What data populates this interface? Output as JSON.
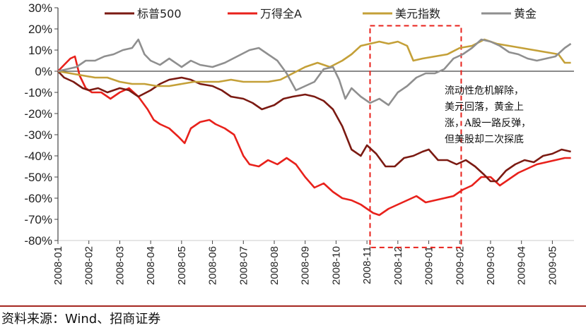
{
  "chart_data": {
    "type": "line",
    "title": "",
    "xlabel": "",
    "ylabel": "",
    "x_ticks": [
      "2008-01",
      "2008-02",
      "2008-03",
      "2008-04",
      "2008-05",
      "2008-06",
      "2008-07",
      "2008-08",
      "2008-09",
      "2008-10",
      "2008-11",
      "2008-12",
      "2009-01",
      "2009-02",
      "2009-03",
      "2009-04",
      "2009-05"
    ],
    "y_ticks": [
      "30%",
      "20%",
      "10%",
      "0%",
      "-10%",
      "-20%",
      "-30%",
      "-40%",
      "-50%",
      "-60%",
      "-70%",
      "-80%"
    ],
    "ylim": [
      -80,
      30
    ],
    "grid": false,
    "legend_position": "top",
    "x_unit": "months since 2008-01",
    "series": [
      {
        "name": "标普500",
        "color": "#7b1a12",
        "points": [
          [
            0,
            0
          ],
          [
            0.2,
            -3
          ],
          [
            0.5,
            -5
          ],
          [
            0.8,
            -8
          ],
          [
            1.0,
            -9
          ],
          [
            1.3,
            -8
          ],
          [
            1.6,
            -10
          ],
          [
            2.0,
            -8
          ],
          [
            2.3,
            -9
          ],
          [
            2.6,
            -12
          ],
          [
            3.0,
            -9
          ],
          [
            3.3,
            -6
          ],
          [
            3.6,
            -4
          ],
          [
            4.0,
            -3
          ],
          [
            4.3,
            -4
          ],
          [
            4.6,
            -6
          ],
          [
            5.0,
            -7
          ],
          [
            5.3,
            -9
          ],
          [
            5.6,
            -12
          ],
          [
            6.0,
            -13
          ],
          [
            6.3,
            -15
          ],
          [
            6.6,
            -18
          ],
          [
            7.0,
            -16
          ],
          [
            7.3,
            -13
          ],
          [
            7.6,
            -12
          ],
          [
            8.0,
            -11
          ],
          [
            8.3,
            -12
          ],
          [
            8.6,
            -14
          ],
          [
            8.9,
            -18
          ],
          [
            9.2,
            -26
          ],
          [
            9.5,
            -37
          ],
          [
            9.8,
            -40
          ],
          [
            10.0,
            -35
          ],
          [
            10.3,
            -39
          ],
          [
            10.6,
            -45
          ],
          [
            10.9,
            -45
          ],
          [
            11.2,
            -41
          ],
          [
            11.5,
            -40
          ],
          [
            11.8,
            -38
          ],
          [
            12.0,
            -37
          ],
          [
            12.3,
            -42
          ],
          [
            12.6,
            -42
          ],
          [
            12.9,
            -44
          ],
          [
            13.2,
            -42
          ],
          [
            13.5,
            -45
          ],
          [
            13.8,
            -49
          ],
          [
            14.0,
            -52
          ],
          [
            14.2,
            -52
          ],
          [
            14.5,
            -47
          ],
          [
            14.8,
            -44
          ],
          [
            15.1,
            -42
          ],
          [
            15.4,
            -43
          ],
          [
            15.7,
            -40
          ],
          [
            16.0,
            -39
          ],
          [
            16.3,
            -37
          ],
          [
            16.6,
            -38
          ]
        ]
      },
      {
        "name": "万得全A",
        "color": "#e8211b",
        "points": [
          [
            0,
            0
          ],
          [
            0.2,
            3
          ],
          [
            0.4,
            6
          ],
          [
            0.55,
            7
          ],
          [
            0.7,
            -2
          ],
          [
            0.9,
            -8
          ],
          [
            1.1,
            -10
          ],
          [
            1.4,
            -10
          ],
          [
            1.7,
            -13
          ],
          [
            2.0,
            -10
          ],
          [
            2.3,
            -8
          ],
          [
            2.6,
            -12
          ],
          [
            2.9,
            -18
          ],
          [
            3.1,
            -23
          ],
          [
            3.3,
            -25
          ],
          [
            3.6,
            -27
          ],
          [
            3.9,
            -31
          ],
          [
            4.1,
            -34
          ],
          [
            4.3,
            -27
          ],
          [
            4.6,
            -24
          ],
          [
            4.9,
            -23
          ],
          [
            5.1,
            -25
          ],
          [
            5.4,
            -27
          ],
          [
            5.7,
            -30
          ],
          [
            6.0,
            -40
          ],
          [
            6.2,
            -44
          ],
          [
            6.5,
            -45
          ],
          [
            6.8,
            -42
          ],
          [
            7.1,
            -44
          ],
          [
            7.4,
            -41
          ],
          [
            7.7,
            -44
          ],
          [
            8.0,
            -50
          ],
          [
            8.3,
            -55
          ],
          [
            8.6,
            -53
          ],
          [
            8.9,
            -57
          ],
          [
            9.2,
            -60
          ],
          [
            9.5,
            -61
          ],
          [
            9.8,
            -63
          ],
          [
            10.0,
            -65
          ],
          [
            10.2,
            -67
          ],
          [
            10.4,
            -68
          ],
          [
            10.7,
            -65
          ],
          [
            11.0,
            -63
          ],
          [
            11.3,
            -61
          ],
          [
            11.6,
            -59
          ],
          [
            11.9,
            -62
          ],
          [
            12.2,
            -61
          ],
          [
            12.5,
            -60
          ],
          [
            12.8,
            -59
          ],
          [
            13.1,
            -56
          ],
          [
            13.4,
            -54
          ],
          [
            13.7,
            -50
          ],
          [
            14.0,
            -50
          ],
          [
            14.3,
            -54
          ],
          [
            14.6,
            -51
          ],
          [
            14.9,
            -48
          ],
          [
            15.2,
            -46
          ],
          [
            15.5,
            -44
          ],
          [
            15.8,
            -43
          ],
          [
            16.1,
            -42
          ],
          [
            16.4,
            -41
          ],
          [
            16.6,
            -41
          ]
        ]
      },
      {
        "name": "美元指数",
        "color": "#c4a038",
        "points": [
          [
            0,
            0
          ],
          [
            0.4,
            -1
          ],
          [
            0.8,
            -2
          ],
          [
            1.2,
            -3
          ],
          [
            1.6,
            -3
          ],
          [
            2.0,
            -5
          ],
          [
            2.4,
            -6
          ],
          [
            2.8,
            -6
          ],
          [
            3.2,
            -7
          ],
          [
            3.6,
            -7
          ],
          [
            4.0,
            -6
          ],
          [
            4.4,
            -5
          ],
          [
            4.8,
            -5
          ],
          [
            5.2,
            -5
          ],
          [
            5.6,
            -4
          ],
          [
            6.0,
            -5
          ],
          [
            6.4,
            -5
          ],
          [
            6.8,
            -5
          ],
          [
            7.2,
            -4
          ],
          [
            7.6,
            -1
          ],
          [
            8.0,
            2
          ],
          [
            8.4,
            4
          ],
          [
            8.8,
            2
          ],
          [
            9.2,
            5
          ],
          [
            9.5,
            8
          ],
          [
            9.8,
            12
          ],
          [
            10.1,
            13
          ],
          [
            10.4,
            14
          ],
          [
            10.7,
            13
          ],
          [
            11.0,
            14
          ],
          [
            11.3,
            12
          ],
          [
            11.5,
            5
          ],
          [
            11.8,
            6
          ],
          [
            12.2,
            7
          ],
          [
            12.6,
            8
          ],
          [
            13.0,
            11
          ],
          [
            13.4,
            12
          ],
          [
            13.8,
            15
          ],
          [
            14.2,
            13
          ],
          [
            14.6,
            12
          ],
          [
            15.0,
            11
          ],
          [
            15.4,
            10
          ],
          [
            15.8,
            9
          ],
          [
            16.2,
            8
          ],
          [
            16.4,
            4
          ],
          [
            16.6,
            4
          ]
        ]
      },
      {
        "name": "黄金",
        "color": "#8f8f8f",
        "points": [
          [
            0,
            0
          ],
          [
            0.3,
            1
          ],
          [
            0.6,
            2
          ],
          [
            0.9,
            5
          ],
          [
            1.2,
            5
          ],
          [
            1.5,
            7
          ],
          [
            1.8,
            8
          ],
          [
            2.1,
            10
          ],
          [
            2.4,
            11
          ],
          [
            2.6,
            15
          ],
          [
            2.8,
            8
          ],
          [
            3.0,
            5
          ],
          [
            3.3,
            3
          ],
          [
            3.6,
            6
          ],
          [
            4.0,
            2
          ],
          [
            4.3,
            5
          ],
          [
            4.6,
            3
          ],
          [
            5.0,
            2
          ],
          [
            5.4,
            4
          ],
          [
            5.8,
            7
          ],
          [
            6.2,
            10
          ],
          [
            6.5,
            11
          ],
          [
            6.8,
            8
          ],
          [
            7.1,
            5
          ],
          [
            7.4,
            -1
          ],
          [
            7.7,
            -9
          ],
          [
            8.0,
            -7
          ],
          [
            8.3,
            -5
          ],
          [
            8.6,
            1
          ],
          [
            8.9,
            2
          ],
          [
            9.1,
            -4
          ],
          [
            9.3,
            -13
          ],
          [
            9.5,
            -8
          ],
          [
            9.8,
            -12
          ],
          [
            10.1,
            -15
          ],
          [
            10.4,
            -13
          ],
          [
            10.7,
            -16
          ],
          [
            11.0,
            -10
          ],
          [
            11.3,
            -7
          ],
          [
            11.6,
            -3
          ],
          [
            11.9,
            -1
          ],
          [
            12.2,
            -1
          ],
          [
            12.5,
            1
          ],
          [
            12.8,
            6
          ],
          [
            13.1,
            8
          ],
          [
            13.4,
            11
          ],
          [
            13.7,
            15
          ],
          [
            14.0,
            14
          ],
          [
            14.3,
            12
          ],
          [
            14.6,
            9
          ],
          [
            14.9,
            8
          ],
          [
            15.2,
            6
          ],
          [
            15.5,
            5
          ],
          [
            15.8,
            6
          ],
          [
            16.1,
            7
          ],
          [
            16.4,
            11
          ],
          [
            16.6,
            13
          ]
        ]
      }
    ],
    "annotation": {
      "lines": [
        "流动性危机解除，",
        "美元回落，黄金上",
        "涨，A股一路反弹，",
        "但美股却二次探底"
      ],
      "highlight_box_style": "red dashed"
    }
  },
  "source_text": "资料来源：Wind、招商证券"
}
